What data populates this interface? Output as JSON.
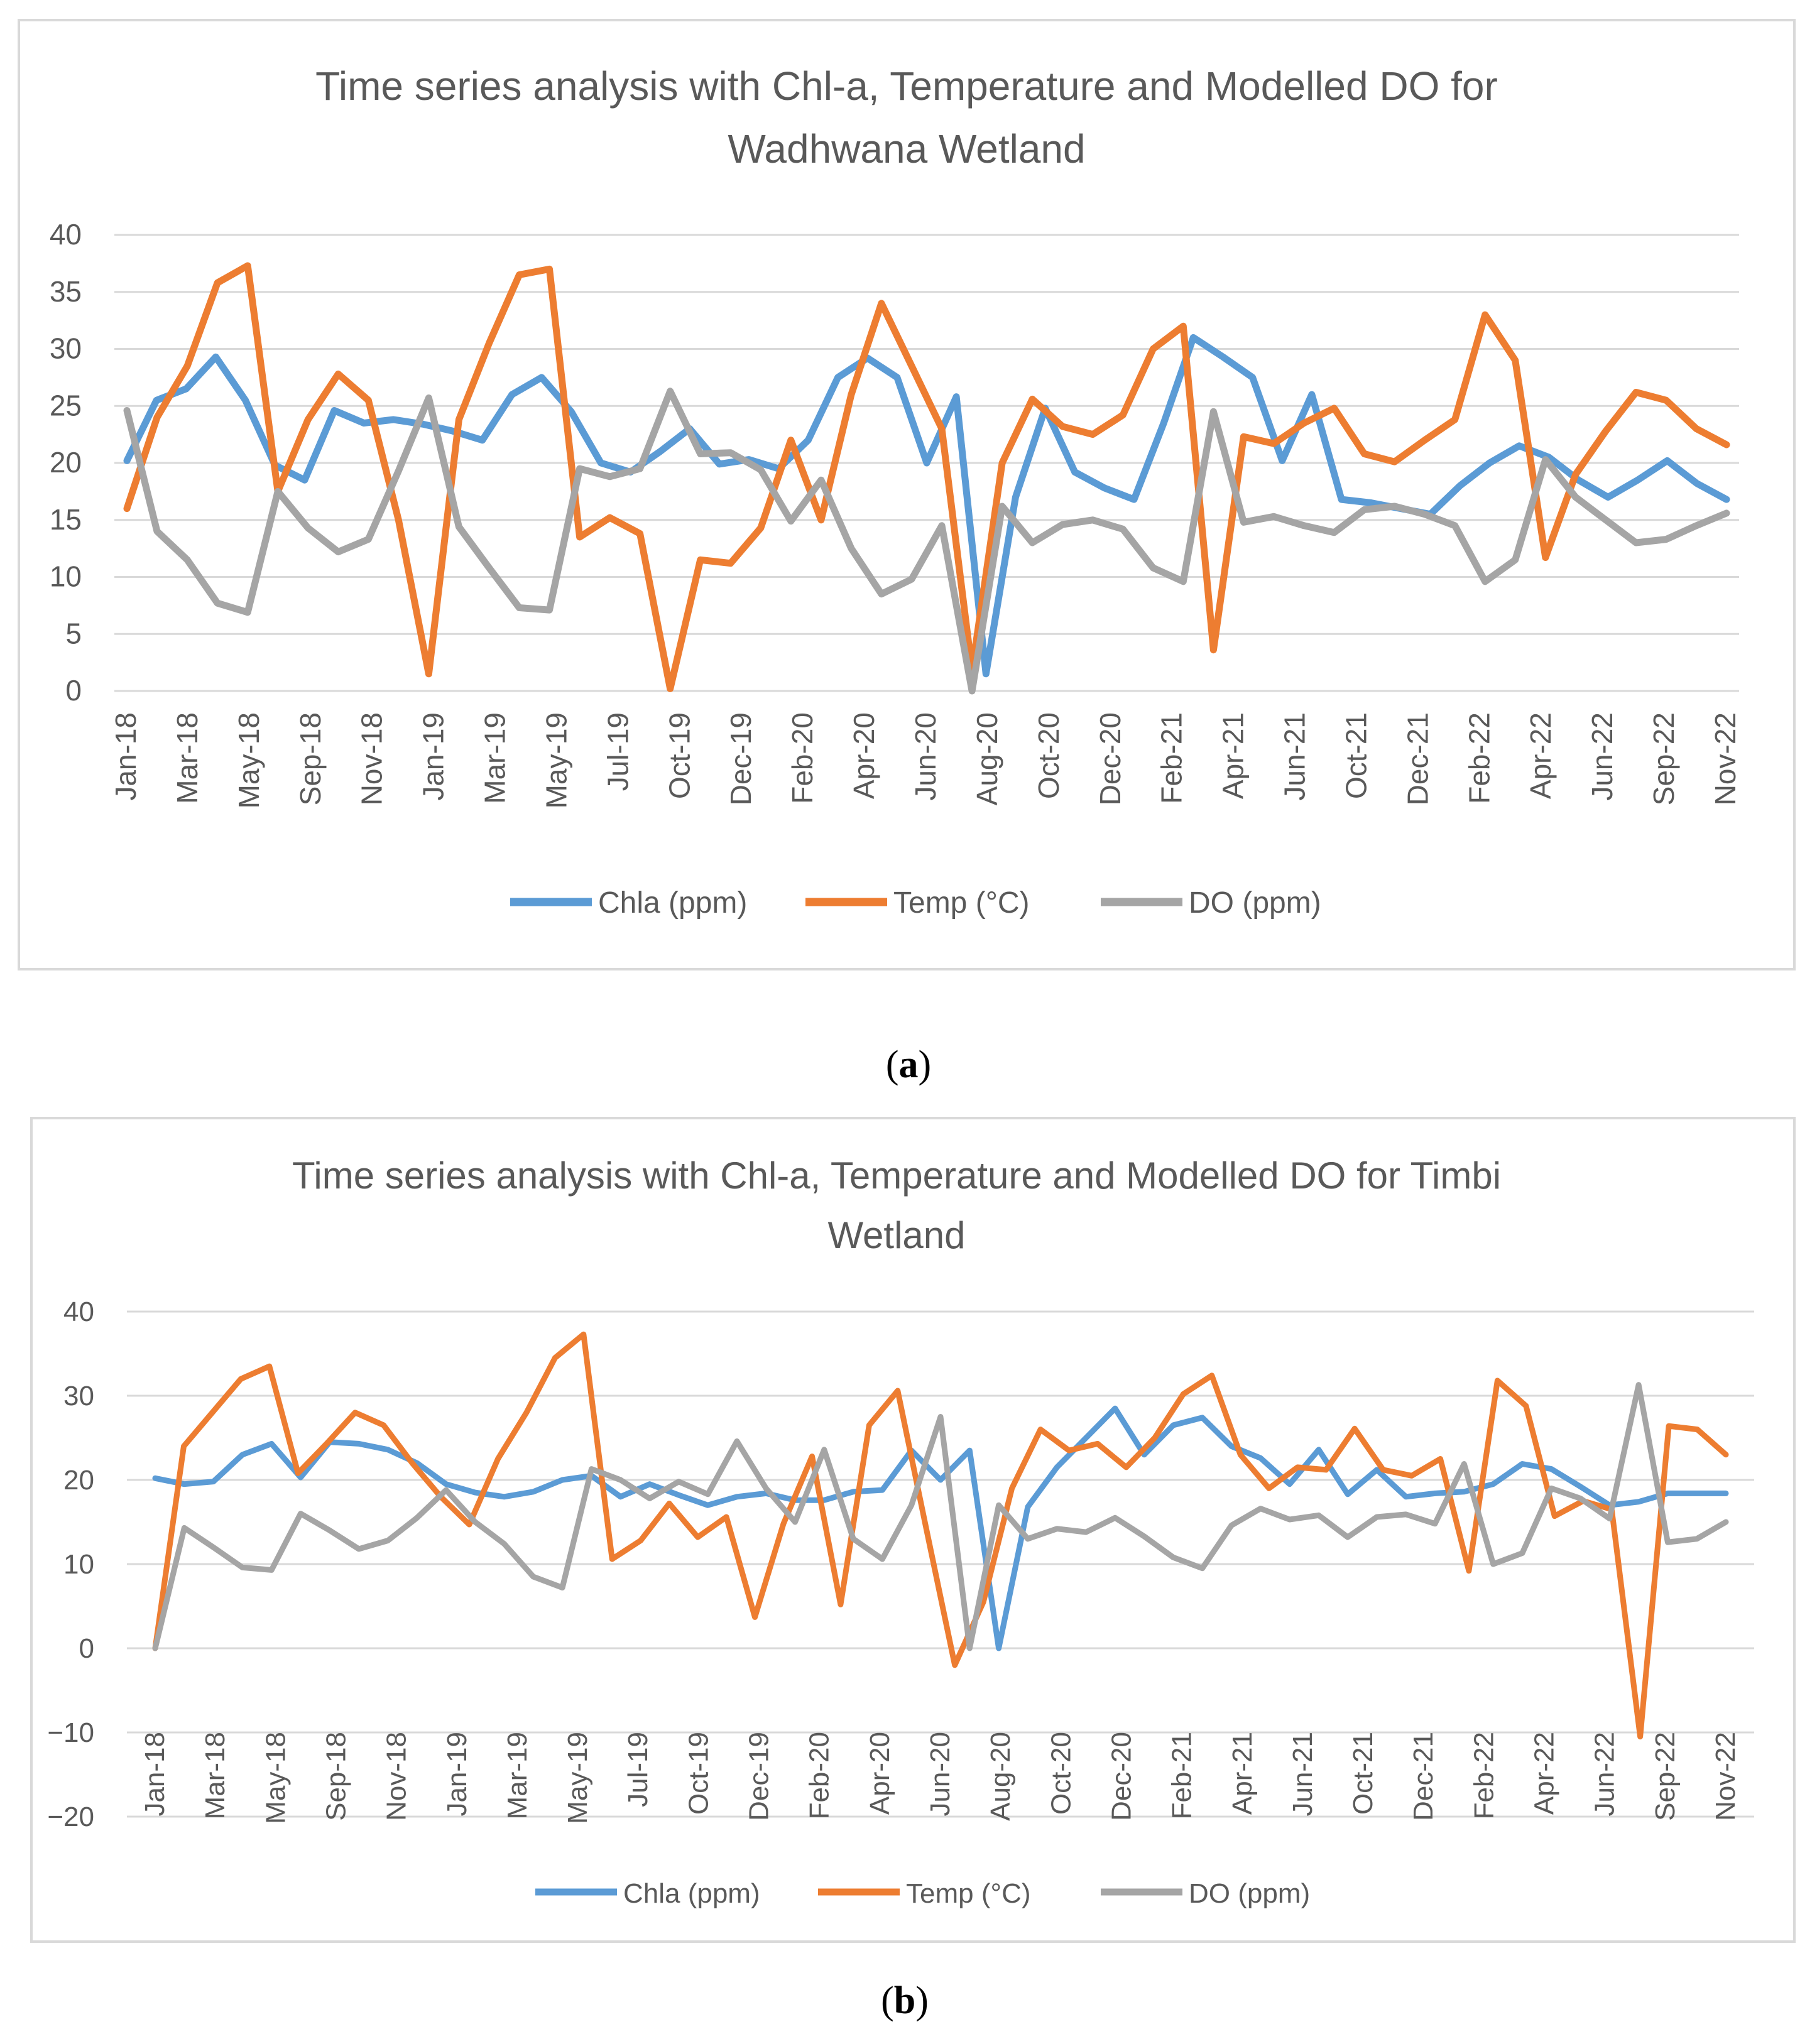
{
  "chart_data": [
    {
      "type": "line",
      "panel": "a",
      "title_lines": [
        "Time series analysis with Chl-a, Temperature and Modelled DO for",
        "Wadhwana Wetland"
      ],
      "ylim": [
        0,
        40
      ],
      "yticks": [
        0,
        5,
        10,
        15,
        20,
        25,
        30,
        35,
        40
      ],
      "ytick_labels": [
        "0",
        "5",
        "10",
        "15",
        "20",
        "25",
        "30",
        "35",
        "40"
      ],
      "xtick_labels": [
        "Jan-18",
        "Mar-18",
        "May-18",
        "Sep-18",
        "Nov-18",
        "Jan-19",
        "Mar-19",
        "May-19",
        "Jul-19",
        "Oct-19",
        "Dec-19",
        "Feb-20",
        "Apr-20",
        "Jun-20",
        "Aug-20",
        "Oct-20",
        "Dec-20",
        "Feb-21",
        "Apr-21",
        "Jun-21",
        "Oct-21",
        "Dec-21",
        "Feb-22",
        "Apr-22",
        "Jun-22",
        "Sep-22",
        "Nov-22"
      ],
      "grid": true,
      "legend": "bottom",
      "series": [
        {
          "name": "Chla (ppm)",
          "color": "#5B9BD5",
          "values": [
            20.2,
            25.5,
            26.5,
            29.3,
            25.5,
            19.8,
            18.5,
            24.6,
            23.5,
            23.8,
            23.4,
            22.8,
            22.0,
            26.0,
            27.5,
            24.5,
            20.0,
            19.2,
            21.0,
            23.0,
            19.9,
            20.3,
            19.5,
            22.0,
            27.5,
            29.2,
            27.5,
            20.0,
            25.8,
            1.5,
            17.0,
            24.8,
            19.2,
            17.8,
            16.8,
            23.5,
            31.0,
            29.3,
            27.5,
            20.2,
            26.0,
            16.8,
            16.5,
            16.0,
            15.5,
            18.0,
            20.0,
            21.5,
            20.5,
            18.5,
            17.0,
            18.5,
            20.2,
            18.2,
            16.8
          ]
        },
        {
          "name": "Temp (°C)",
          "color": "#ED7D31",
          "values": [
            16.0,
            24.0,
            28.5,
            35.8,
            37.3,
            17.5,
            23.8,
            27.8,
            25.5,
            15.0,
            1.5,
            23.8,
            30.5,
            36.5,
            37.0,
            13.5,
            15.2,
            13.8,
            0.2,
            11.5,
            11.2,
            14.3,
            22.0,
            15.0,
            26.0,
            34.0,
            28.5,
            23.0,
            1.8,
            20.0,
            25.6,
            23.2,
            22.5,
            24.2,
            30.0,
            32.0,
            3.6,
            22.3,
            21.7,
            23.5,
            24.8,
            20.8,
            20.1,
            22.0,
            23.8,
            33.0,
            29.0,
            11.7,
            19.0,
            22.8,
            26.2,
            25.5,
            23.0,
            21.6
          ]
        },
        {
          "name": "DO (ppm)",
          "color": "#A5A5A5",
          "values": [
            24.6,
            14.0,
            11.5,
            7.7,
            6.9,
            17.5,
            14.3,
            12.2,
            13.3,
            19.3,
            25.7,
            14.4,
            10.8,
            7.3,
            7.1,
            19.5,
            18.8,
            19.5,
            26.3,
            20.8,
            20.9,
            19.4,
            14.9,
            18.5,
            12.5,
            8.5,
            9.8,
            14.5,
            0.0,
            16.2,
            13.0,
            14.6,
            15.0,
            14.2,
            10.8,
            9.6,
            24.5,
            14.8,
            15.3,
            14.5,
            13.9,
            15.9,
            16.2,
            15.5,
            14.5,
            9.6,
            11.5,
            20.3,
            17.0,
            15.0,
            13.0,
            13.3,
            14.5,
            15.6
          ]
        }
      ]
    },
    {
      "type": "line",
      "panel": "b",
      "title_lines": [
        "Time series analysis with Chl-a, Temperature and Modelled DO for Timbi",
        "Wetland"
      ],
      "ylim": [
        -20,
        40
      ],
      "yticks": [
        -20,
        -10,
        0,
        10,
        20,
        30,
        40
      ],
      "ytick_labels": [
        "−20",
        "−10",
        "0",
        "10",
        "20",
        "30",
        "40"
      ],
      "xtick_labels": [
        "Jan-18",
        "Mar-18",
        "May-18",
        "Sep-18",
        "Nov-18",
        "Jan-19",
        "Mar-19",
        "May-19",
        "Jul-19",
        "Oct-19",
        "Dec-19",
        "Feb-20",
        "Apr-20",
        "Jun-20",
        "Aug-20",
        "Oct-20",
        "Dec-20",
        "Feb-21",
        "Apr-21",
        "Jun-21",
        "Oct-21",
        "Dec-21",
        "Feb-22",
        "Apr-22",
        "Jun-22",
        "Sep-22",
        "Nov-22"
      ],
      "grid": true,
      "legend": "bottom",
      "series": [
        {
          "name": "Chla (ppm)",
          "color": "#5B9BD5",
          "values": [
            20.2,
            19.5,
            19.8,
            23.0,
            24.3,
            20.3,
            24.5,
            24.3,
            23.6,
            22.0,
            19.5,
            18.5,
            18.0,
            18.6,
            20.0,
            20.5,
            18.0,
            19.5,
            18.2,
            17.0,
            18.0,
            18.4,
            17.6,
            17.6,
            18.6,
            18.8,
            23.5,
            20.0,
            23.5,
            0.0,
            16.8,
            21.5,
            25.0,
            28.5,
            23.0,
            26.5,
            27.4,
            24.0,
            22.6,
            19.5,
            23.6,
            18.3,
            21.2,
            18.0,
            18.4,
            18.6,
            19.5,
            21.9,
            21.3,
            19.2,
            17.0,
            17.4,
            18.4,
            18.4,
            18.4
          ]
        },
        {
          "name": "Temp (°C)",
          "color": "#ED7D31",
          "values": [
            0.0,
            24.0,
            28.0,
            32.0,
            33.5,
            20.8,
            24.3,
            28.0,
            26.5,
            22.0,
            18.0,
            14.7,
            22.5,
            28.0,
            34.5,
            37.3,
            10.6,
            12.8,
            17.2,
            13.2,
            15.6,
            3.7,
            14.8,
            22.8,
            5.2,
            26.5,
            30.6,
            14.2,
            -2.0,
            5.5,
            19.0,
            26.0,
            23.5,
            24.3,
            21.5,
            25.0,
            30.2,
            32.4,
            23.0,
            19.0,
            21.5,
            21.2,
            26.1,
            21.2,
            20.5,
            22.5,
            9.2,
            31.8,
            28.8,
            15.7,
            17.5,
            16.5,
            -10.5,
            26.4,
            26.0,
            23.0
          ]
        },
        {
          "name": "DO (ppm)",
          "color": "#A5A5A5",
          "values": [
            0.0,
            14.3,
            12.0,
            9.6,
            9.3,
            16.0,
            14.0,
            11.8,
            12.8,
            15.5,
            18.8,
            15.0,
            12.4,
            8.5,
            7.2,
            21.3,
            20.0,
            17.8,
            19.8,
            18.3,
            24.6,
            19.0,
            15.0,
            23.6,
            13.0,
            10.6,
            17.0,
            27.5,
            0.0,
            17.0,
            13.0,
            14.2,
            13.8,
            15.5,
            13.3,
            10.8,
            9.5,
            14.6,
            16.6,
            15.3,
            15.8,
            13.2,
            15.6,
            15.9,
            14.8,
            21.9,
            10.0,
            11.3,
            19.0,
            17.8,
            15.4,
            31.3,
            12.6,
            13.0,
            15.0
          ]
        }
      ]
    }
  ],
  "captions": {
    "a": "a",
    "b": "b"
  }
}
